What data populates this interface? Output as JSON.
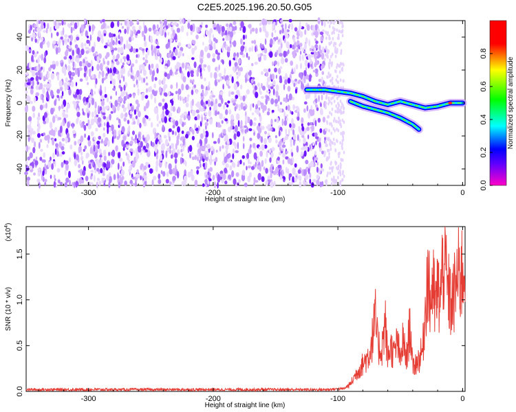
{
  "title": "C2E5.2025.196.20.50.G05",
  "colors": {
    "spectrogram_background_palette": [
      "#c79bff",
      "#9a55ff",
      "#5a00ff"
    ],
    "snr_line": "#e53c34",
    "colorbar": [
      "#ff00c8",
      "#5a00ff",
      "#0000ff",
      "#00ffff",
      "#00ff00",
      "#ffff00",
      "#ff0000",
      "#ff0000"
    ]
  },
  "chart_data": [
    {
      "type": "heatmap",
      "title": "",
      "xlabel": "Height of straight line (km)",
      "ylabel": "Frequency (Hz)",
      "xlim": [
        -350,
        2
      ],
      "ylim": [
        -50,
        50
      ],
      "x_ticks": [
        -300,
        -200,
        -100,
        0
      ],
      "y_ticks": [
        -40,
        -20,
        0,
        20,
        40
      ],
      "noise_region_x": [
        -350,
        -110
      ],
      "faint_noise_x": [
        -110,
        -95
      ],
      "signal_track": {
        "x": [
          -125,
          -110,
          -100,
          -90,
          -80,
          -70,
          -60,
          -50,
          -40,
          -30,
          -20,
          -10,
          -5,
          0
        ],
        "freq": [
          8,
          8,
          7,
          6,
          4,
          1,
          -1,
          1,
          -1,
          -3,
          -2,
          0,
          0,
          0
        ]
      },
      "secondary_track": {
        "x": [
          -90,
          -80,
          -70,
          -60,
          -50,
          -40,
          -35
        ],
        "freq": [
          1,
          -2,
          -4,
          -6,
          -9,
          -13,
          -16
        ]
      },
      "colorbar": {
        "label": "Normalized spectral amplitude",
        "range": [
          0,
          1
        ],
        "ticks": [
          "0.0",
          "0.2",
          "0.4",
          "0.6",
          "0.8"
        ]
      }
    },
    {
      "type": "line",
      "title": "",
      "xlabel": "Height of straight line (km)",
      "ylabel": "SNR (10 * v/v)",
      "yscale_label": "(x10",
      "yscale_exponent": "4",
      "xlim": [
        -350,
        2
      ],
      "ylim": [
        0,
        1.8
      ],
      "x_ticks": [
        -300,
        -200,
        -100,
        0
      ],
      "y_ticks": [
        "0.0",
        "0.5",
        "1.0",
        "1.5"
      ],
      "series": [
        {
          "x": [
            -350,
            -300,
            -250,
            -200,
            -150,
            -110,
            -95,
            -90,
            -85,
            -80,
            -75,
            -72,
            -70,
            -68,
            -65,
            -62,
            -60,
            -58,
            -55,
            -52,
            -50,
            -48,
            -45,
            -42,
            -40,
            -38,
            -35,
            -32,
            -30,
            -28,
            -26,
            -24,
            -22,
            -20,
            -18,
            -15,
            -12,
            -10,
            -8,
            -5,
            -3,
            0,
            2
          ],
          "y": [
            0.02,
            0.02,
            0.02,
            0.02,
            0.02,
            0.02,
            0.03,
            0.08,
            0.2,
            0.3,
            0.4,
            0.6,
            0.8,
            0.5,
            0.45,
            0.75,
            0.35,
            0.5,
            0.4,
            0.55,
            0.3,
            0.55,
            0.35,
            0.75,
            0.25,
            0.3,
            0.35,
            0.45,
            0.9,
            1.3,
            0.95,
            1.2,
            0.9,
            1.1,
            1.0,
            1.5,
            1.1,
            1.0,
            0.95,
            1.2,
            1.25,
            1.3,
            1.4
          ]
        }
      ]
    }
  ]
}
